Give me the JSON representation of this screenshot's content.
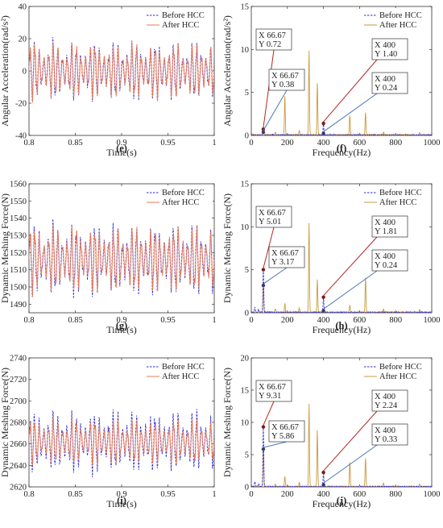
{
  "colors": {
    "before": "#2f2fd0",
    "after": "#c99a3a",
    "after_time": "#e87a5a",
    "arrow_red": "#b5271f",
    "arrow_blue": "#4a78b8"
  },
  "legend": {
    "before": "Before HCC",
    "after": "After HCC"
  },
  "chart_data": [
    {
      "id": "e",
      "panel_label": "(e)",
      "type": "line",
      "xlabel": "Time(s)",
      "ylabel": "Angular Acceleration(rad/s²)",
      "xlim": [
        0.8,
        1.0
      ],
      "ylim": [
        -40,
        40
      ],
      "xticks": [
        "0.8",
        "0.85",
        "0.9",
        "0.95",
        "1"
      ],
      "xtick_values": [
        0.8,
        0.85,
        0.9,
        0.95,
        1.0
      ],
      "yticks": [
        "-40",
        "-20",
        "0",
        "20",
        "40"
      ],
      "ytick_values": [
        -40,
        -20,
        0,
        20,
        40
      ],
      "legend_position": "top-right",
      "signal": {
        "center": 0,
        "amp_before": 21,
        "amp_after": 20,
        "cycles": 40
      },
      "series": [
        {
          "name": "Before HCC",
          "style": "dashed"
        },
        {
          "name": "After HCC",
          "style": "solid"
        }
      ]
    },
    {
      "id": "f",
      "panel_label": "(f)",
      "type": "line",
      "xlabel": "Frequency(Hz)",
      "ylabel": "Angular Acceleration(rad/s²)",
      "xlim": [
        0,
        1000
      ],
      "ylim": [
        0,
        15
      ],
      "xticks": [
        "0",
        "200",
        "400",
        "600",
        "800",
        "1000"
      ],
      "xtick_values": [
        0,
        200,
        400,
        600,
        800,
        1000
      ],
      "yticks": [
        "0",
        "5",
        "10",
        "15"
      ],
      "ytick_values": [
        0,
        5,
        10,
        15
      ],
      "legend_position": "top-right",
      "peaks_after": [
        [
          66.67,
          0.38
        ],
        [
          133,
          0.3
        ],
        [
          186,
          4.5
        ],
        [
          266,
          0.5
        ],
        [
          320,
          9.8
        ],
        [
          366,
          6.1
        ],
        [
          400,
          0.24
        ],
        [
          546,
          2.3
        ],
        [
          633,
          2.6
        ],
        [
          733,
          0.35
        ],
        [
          933,
          0.3
        ]
      ],
      "peaks_before": [
        [
          66.67,
          0.72
        ],
        [
          400,
          1.4
        ]
      ],
      "annotations": [
        {
          "x": 66.67,
          "y": 0.72,
          "lx": "X 66.67",
          "ly": "Y 0.72",
          "color": "red"
        },
        {
          "x": 66.67,
          "y": 0.38,
          "lx": "X 66.67",
          "ly": "Y 0.38",
          "color": "blue"
        },
        {
          "x": 400,
          "y": 1.4,
          "lx": "X 400",
          "ly": "Y 1.40",
          "color": "red"
        },
        {
          "x": 400,
          "y": 0.24,
          "lx": "X 400",
          "ly": "Y 0.24",
          "color": "blue"
        }
      ]
    },
    {
      "id": "g",
      "panel_label": "(g)",
      "type": "line",
      "xlabel": "Time(s)",
      "ylabel": "Dynamic Meshing Force(N)",
      "xlim": [
        0.8,
        1.0
      ],
      "ylim": [
        1485,
        1560
      ],
      "xticks": [
        "0.8",
        "0.85",
        "0.9",
        "0.95",
        "1"
      ],
      "xtick_values": [
        0.8,
        0.85,
        0.9,
        0.95,
        1.0
      ],
      "yticks": [
        "1490",
        "1500",
        "1510",
        "1520",
        "1530",
        "1540",
        "1550",
        "1560"
      ],
      "ytick_values": [
        1490,
        1500,
        1510,
        1520,
        1530,
        1540,
        1550,
        1560
      ],
      "legend_position": "top-right",
      "signal": {
        "center": 1516,
        "amp_before": 24,
        "amp_after": 22,
        "cycles": 40
      },
      "series": [
        {
          "name": "Before HCC",
          "style": "dashed"
        },
        {
          "name": "After HCC",
          "style": "solid"
        }
      ]
    },
    {
      "id": "h",
      "panel_label": "(h)",
      "type": "line",
      "xlabel": "Frequency(Hz)",
      "ylabel": "Dynamic Meshing Force(N)",
      "xlim": [
        0,
        1000
      ],
      "ylim": [
        0,
        15
      ],
      "xticks": [
        "0",
        "200",
        "400",
        "600",
        "800",
        "1000"
      ],
      "xtick_values": [
        0,
        200,
        400,
        600,
        800,
        1000
      ],
      "yticks": [
        "0",
        "5",
        "10",
        "15"
      ],
      "ytick_values": [
        0,
        5,
        10,
        15
      ],
      "legend_position": "top-right",
      "peaks_after": [
        [
          66.67,
          3.17
        ],
        [
          133,
          0.4
        ],
        [
          186,
          1.0
        ],
        [
          266,
          0.5
        ],
        [
          320,
          10.4
        ],
        [
          366,
          3.8
        ],
        [
          400,
          0.24
        ],
        [
          546,
          0.8
        ],
        [
          633,
          4.0
        ],
        [
          733,
          0.35
        ],
        [
          933,
          0.3
        ]
      ],
      "peaks_before": [
        [
          20,
          0.6
        ],
        [
          40,
          0.4
        ],
        [
          66.67,
          5.01
        ],
        [
          400,
          1.81
        ]
      ],
      "annotations": [
        {
          "x": 66.67,
          "y": 5.01,
          "lx": "X 66.67",
          "ly": "Y 5.01",
          "color": "red"
        },
        {
          "x": 66.67,
          "y": 3.17,
          "lx": "X 66.67",
          "ly": "Y 3.17",
          "color": "blue"
        },
        {
          "x": 400,
          "y": 1.81,
          "lx": "X 400",
          "ly": "Y 1.81",
          "color": "red"
        },
        {
          "x": 400,
          "y": 0.24,
          "lx": "X 400",
          "ly": "Y 0.24",
          "color": "blue"
        }
      ]
    },
    {
      "id": "i",
      "panel_label": "(i)",
      "type": "line",
      "xlabel": "Time(s)",
      "ylabel": "Dynamic Meshing Force(N)",
      "xlim": [
        0.8,
        1.0
      ],
      "ylim": [
        2620,
        2740
      ],
      "xticks": [
        "0.8",
        "0.85",
        "0.9",
        "0.95",
        "1"
      ],
      "xtick_values": [
        0.8,
        0.85,
        0.9,
        0.95,
        1.0
      ],
      "yticks": [
        "2620",
        "2640",
        "2660",
        "2680",
        "2700",
        "2720",
        "2740"
      ],
      "ytick_values": [
        2620,
        2640,
        2660,
        2680,
        2700,
        2720,
        2740
      ],
      "legend_position": "top-right",
      "signal": {
        "center": 2662,
        "amp_before": 32,
        "amp_after": 24,
        "cycles": 40
      },
      "series": [
        {
          "name": "Before HCC",
          "style": "dashed"
        },
        {
          "name": "After HCC",
          "style": "solid"
        }
      ]
    },
    {
      "id": "j",
      "panel_label": "(j)",
      "type": "line",
      "xlabel": "Frequency(Hz)",
      "ylabel": "Dynamic Meshing Force(N)",
      "xlim": [
        0,
        1000
      ],
      "ylim": [
        0,
        20
      ],
      "xticks": [
        "0",
        "200",
        "400",
        "600",
        "800",
        "1000"
      ],
      "xtick_values": [
        0,
        200,
        400,
        600,
        800,
        1000
      ],
      "yticks": [
        "0",
        "5",
        "10",
        "15",
        "20"
      ],
      "ytick_values": [
        0,
        5,
        10,
        15,
        20
      ],
      "legend_position": "top-right",
      "peaks_after": [
        [
          66.67,
          5.86
        ],
        [
          133,
          0.4
        ],
        [
          186,
          1.6
        ],
        [
          266,
          0.6
        ],
        [
          320,
          12.8
        ],
        [
          366,
          8.7
        ],
        [
          400,
          0.33
        ],
        [
          546,
          3.8
        ],
        [
          633,
          4.4
        ],
        [
          733,
          0.5
        ],
        [
          933,
          0.4
        ]
      ],
      "peaks_before": [
        [
          20,
          0.8
        ],
        [
          40,
          0.5
        ],
        [
          66.67,
          9.31
        ],
        [
          400,
          2.24
        ]
      ],
      "annotations": [
        {
          "x": 66.67,
          "y": 9.31,
          "lx": "X 66.67",
          "ly": "Y 9.31",
          "color": "red"
        },
        {
          "x": 66.67,
          "y": 5.86,
          "lx": "X 66.67",
          "ly": "Y 5.86",
          "color": "blue"
        },
        {
          "x": 400,
          "y": 2.24,
          "lx": "X 400",
          "ly": "Y 2.24",
          "color": "red"
        },
        {
          "x": 400,
          "y": 0.33,
          "lx": "X 400",
          "ly": "Y 0.33",
          "color": "blue"
        }
      ]
    }
  ]
}
